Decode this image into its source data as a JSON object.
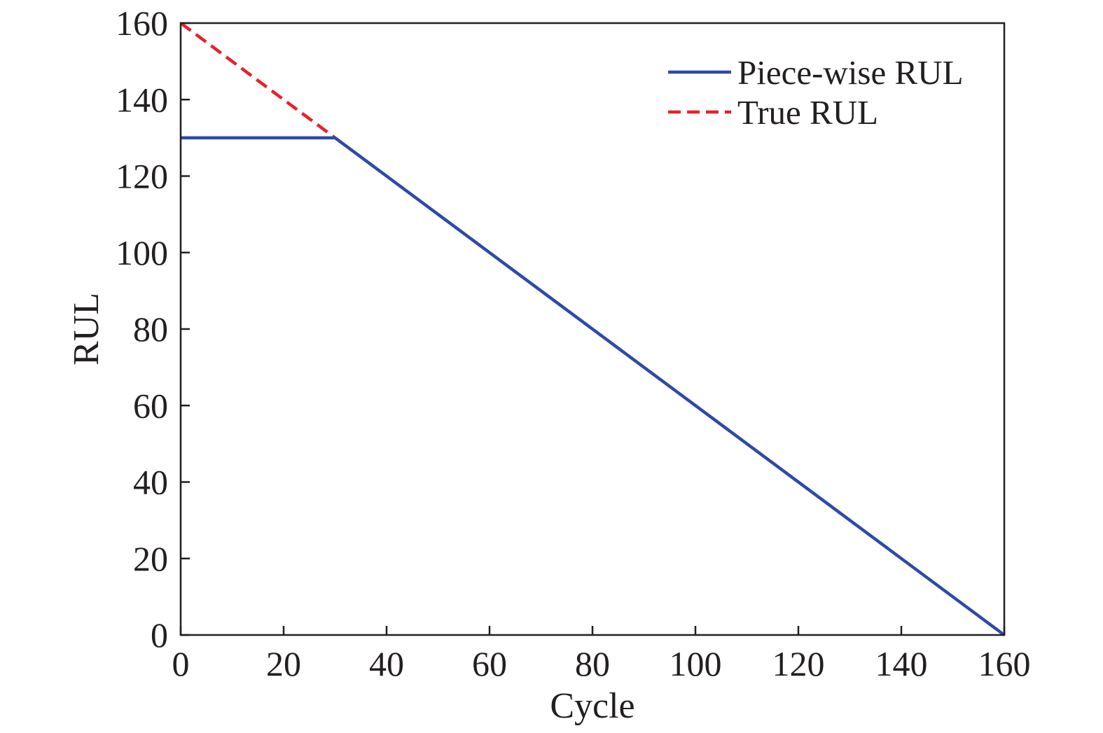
{
  "chart_data": {
    "type": "line",
    "title": "",
    "xlabel": "Cycle",
    "ylabel": "RUL",
    "xlim": [
      0,
      160
    ],
    "ylim": [
      0,
      160
    ],
    "xticks": [
      0,
      20,
      40,
      60,
      80,
      100,
      120,
      140,
      160
    ],
    "yticks": [
      0,
      20,
      40,
      60,
      80,
      100,
      120,
      140,
      160
    ],
    "grid": false,
    "legend_position": "top-right",
    "series": [
      {
        "name": "Piece-wise RUL",
        "color": "#2e4aa8",
        "line_style": "solid",
        "points": [
          [
            0,
            130
          ],
          [
            30,
            130
          ],
          [
            160,
            0
          ]
        ]
      },
      {
        "name": "True RUL",
        "color": "#e8202a",
        "line_style": "dashed",
        "points": [
          [
            0,
            160
          ],
          [
            30,
            130
          ]
        ]
      }
    ]
  }
}
